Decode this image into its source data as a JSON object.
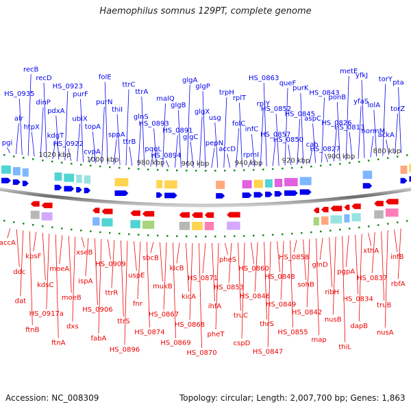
{
  "title": "Haemophilus somnus 129PT, complete genome",
  "footer": {
    "accession": "Accession: NC_008309",
    "summary": "Topology: circular; Length: 2,007,700 bp; Genes: 1,863"
  },
  "scale_labels": [
    "1020 kbp",
    "1000 kbp",
    "980 kbp",
    "960 kbp",
    "940 kbp",
    "920 kbp",
    "900 kbp",
    "880 kbp"
  ],
  "forward_genes": [
    "pgi",
    "alr",
    "HS_0935",
    "recB",
    "htpX",
    "dinP",
    "recD",
    "kdgT",
    "pdxA",
    "HS_0923",
    "HS_0922",
    "ubiX",
    "purF",
    "cvpA",
    "topA",
    "purN",
    "folE",
    "sppA",
    "thiI",
    "ttrC",
    "ttrB",
    "glnS",
    "ttrA",
    "pqqL",
    "HS_0893",
    "malQ",
    "HS_0894",
    "HS_0891",
    "glgB",
    "glgA",
    "glgC",
    "glgX",
    "glgP",
    "pepN",
    "usg",
    "trpH",
    "accD",
    "folC",
    "rplT",
    "rpmI",
    "infC",
    "rplY",
    "HS_0863",
    "HS_0857",
    "HS_0852",
    "queF",
    "HS_0850",
    "HS_0845",
    "purK",
    "cah",
    "aspC",
    "HS_0843",
    "HS_0827",
    "HS_0826",
    "ponB",
    "metE",
    "HS_0813",
    "yfaS",
    "yfkJ",
    "normM",
    "lolA",
    "torY",
    "ackA",
    "torZ",
    "pta"
  ],
  "reverse_genes": [
    "accA",
    "ddc",
    "dat",
    "ftnB",
    "kpsF",
    "kdsC",
    "HS_0917a",
    "ftnA",
    "moeA",
    "moeB",
    "dxs",
    "xseB",
    "ispA",
    "HS_0906",
    "fabA",
    "HS_0909",
    "ttrR",
    "ttrS",
    "HS_0896",
    "uspE",
    "fnr",
    "HS_0874",
    "sbcB",
    "mukB",
    "HS_0867",
    "HS_0869",
    "kicB",
    "kicA",
    "HS_0868",
    "HS_0870",
    "HS_0871",
    "ihfA",
    "pheT",
    "pheS",
    "HS_0853",
    "truC",
    "cspD",
    "HS_0860",
    "HS_0846",
    "thrS",
    "HS_0847",
    "HS_0848",
    "HS_0849",
    "HS_0855",
    "HS_0858",
    "sohB",
    "HS_0842",
    "map",
    "glnD",
    "ribH",
    "nusB",
    "thiL",
    "pgpA",
    "HS_0834",
    "dapB",
    "xthA",
    "HS_0837",
    "truB",
    "nusA",
    "infB",
    "rbfA"
  ],
  "colors": {
    "forward": "#0000ee",
    "reverse": "#ee0000",
    "backbone": "#777777",
    "tick": "#1a8a1a"
  }
}
